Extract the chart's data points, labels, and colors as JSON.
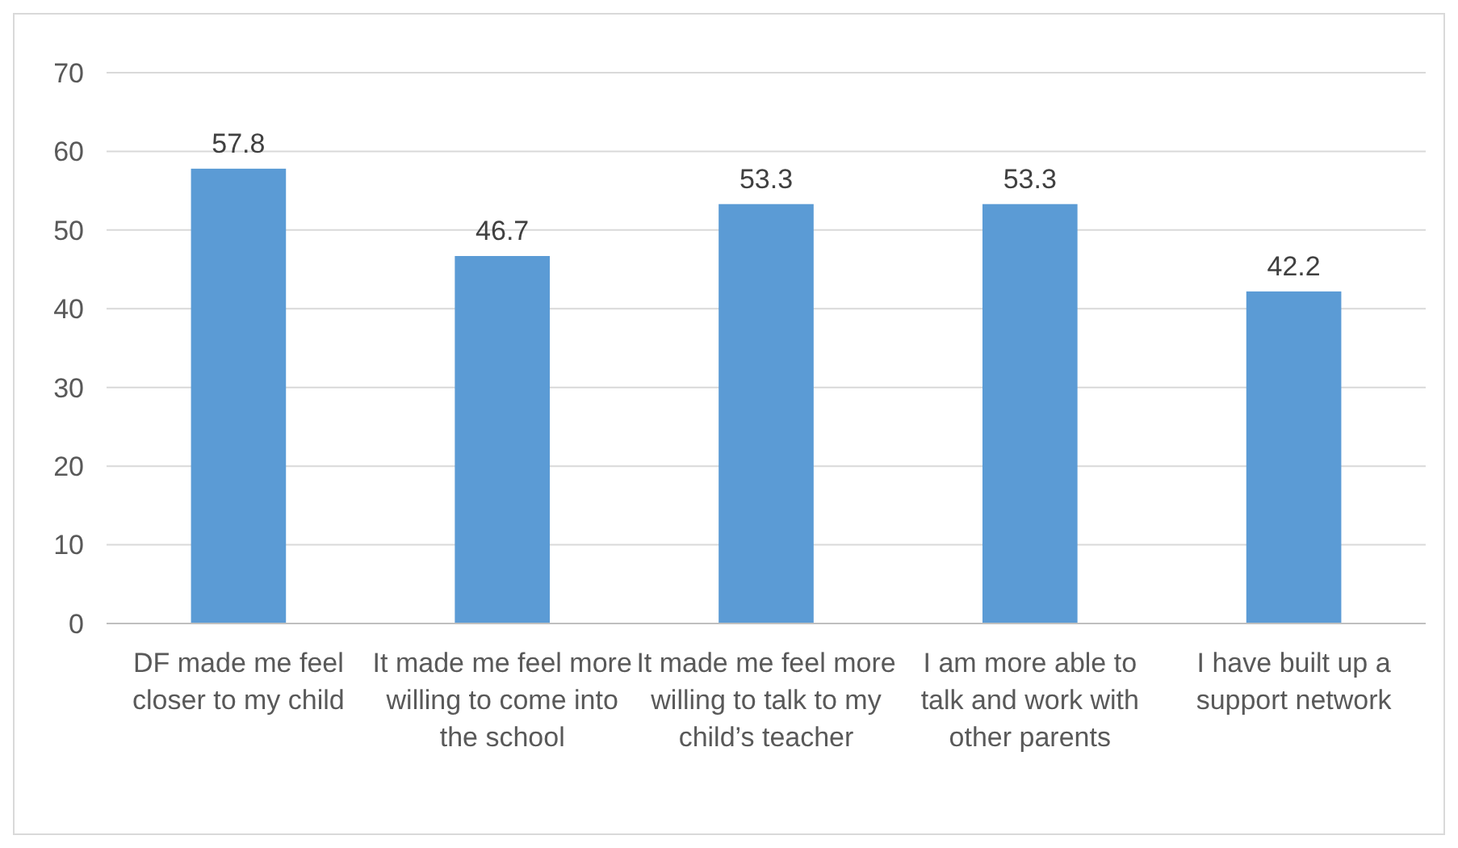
{
  "chart_data": {
    "type": "bar",
    "categories": [
      "DF made me feel closer to my child",
      "It made me feel more willing to come into the school",
      "It made me feel more willing to talk to my child’s teacher",
      "I am more able to talk and work with other parents",
      "I have built up a support network"
    ],
    "values": [
      57.8,
      46.7,
      53.3,
      53.3,
      42.2
    ],
    "color": "#5b9bd5",
    "ylim": [
      0,
      70
    ],
    "yticks": [
      0,
      10,
      20,
      30,
      40,
      50,
      60,
      70
    ],
    "grid": "y",
    "data_labels": true
  }
}
